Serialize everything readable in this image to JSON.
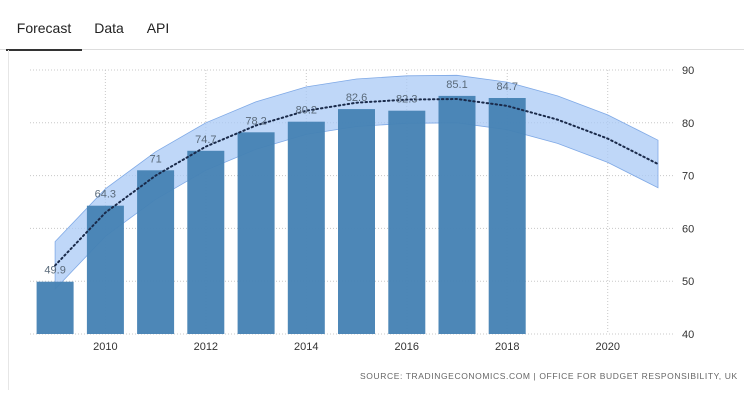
{
  "tabs": [
    {
      "label": "Forecast",
      "active": true
    },
    {
      "label": "Data",
      "active": false
    },
    {
      "label": "API",
      "active": false
    }
  ],
  "source_text": "SOURCE: TRADINGECONOMICS.COM | OFFICE FOR BUDGET RESPONSIBILITY, UK",
  "colors": {
    "bar": "#4682b4",
    "band": "#a9c9f5",
    "trend": "#1a2a4a",
    "label": "#5a6a7a",
    "grid": "#c8c8c8"
  },
  "chart_data": {
    "type": "bar",
    "title": "",
    "xlabel": "",
    "ylabel": "",
    "categories": [
      "2009",
      "2010",
      "2011",
      "2012",
      "2013",
      "2014",
      "2015",
      "2016",
      "2017",
      "2018"
    ],
    "values": [
      49.9,
      64.3,
      71,
      74.7,
      78.2,
      80.2,
      82.6,
      82.3,
      85.1,
      84.7
    ],
    "value_labels": [
      "49.9",
      "64.3",
      "71",
      "74.7",
      "78.2",
      "80.2",
      "82.6",
      "82.3",
      "85.1",
      "84.7"
    ],
    "ylim": [
      40,
      90
    ],
    "y_ticks": [
      "40",
      "50",
      "60",
      "70",
      "80",
      "90"
    ],
    "x_ticks": [
      "2010",
      "2012",
      "2014",
      "2016",
      "2018",
      "2020"
    ],
    "xlim": [
      2008.5,
      2021.2
    ],
    "grid": "horizontal dotted",
    "y_axis_side": "right",
    "forecast": {
      "type": "line",
      "style": "dotted",
      "x": [
        2009,
        2010,
        2011,
        2012,
        2013,
        2014,
        2015,
        2016,
        2017,
        2018,
        2019,
        2020,
        2021
      ],
      "values": [
        53.0,
        63.0,
        70.0,
        75.5,
        79.5,
        82.3,
        83.8,
        84.4,
        84.5,
        83.2,
        80.6,
        77.0,
        72.2
      ],
      "band_upper": [
        57.5,
        67.5,
        74.5,
        80.0,
        84.0,
        86.8,
        88.3,
        88.9,
        89.0,
        87.7,
        85.1,
        81.5,
        76.7
      ],
      "band_lower": [
        48.5,
        58.5,
        65.5,
        71.0,
        75.0,
        77.8,
        79.3,
        79.9,
        80.0,
        78.7,
        76.1,
        72.5,
        67.7
      ]
    }
  }
}
